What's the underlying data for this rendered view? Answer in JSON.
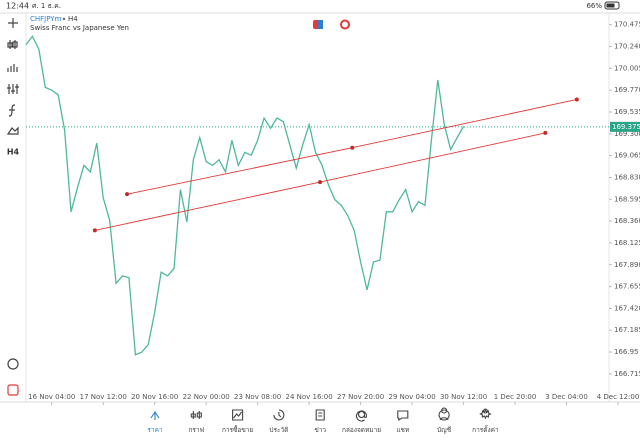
{
  "status_bar": {
    "time": "12:44",
    "date": "ศ. 1 ธ.ค.",
    "battery": "66%"
  },
  "toolbar": {
    "timeframe_button": "H4"
  },
  "chart_data": {
    "type": "line",
    "symbol": "CHFJPYm",
    "timeframe": "H4",
    "title": "Swiss Franc vs Japanese Yen",
    "x": [
      0,
      1,
      2,
      3,
      4,
      5,
      6,
      7,
      8,
      9,
      10,
      11,
      12,
      13,
      14,
      15,
      16,
      17,
      18,
      19,
      20,
      21,
      22,
      23,
      24,
      25,
      26,
      27,
      28,
      29,
      30,
      31,
      32,
      33,
      34,
      35,
      36,
      37,
      38,
      39,
      40,
      41,
      42,
      43,
      44,
      45,
      46,
      47,
      48,
      49,
      50,
      51,
      52,
      53,
      54,
      55,
      56,
      57,
      58,
      59,
      60,
      61,
      62,
      63,
      64,
      65,
      66,
      67,
      68
    ],
    "series": [
      {
        "color": "#4fb89a",
        "values": [
          170.26,
          170.35,
          170.21,
          169.8,
          169.77,
          169.72,
          169.34,
          168.46,
          168.72,
          168.96,
          168.89,
          169.2,
          168.61,
          168.37,
          167.69,
          167.77,
          167.75,
          166.92,
          166.95,
          167.03,
          167.38,
          167.81,
          167.77,
          167.85,
          168.7,
          168.35,
          169.02,
          169.26,
          169.0,
          168.96,
          169.02,
          168.89,
          169.23,
          168.96,
          169.1,
          169.07,
          169.23,
          169.47,
          169.36,
          169.47,
          169.43,
          169.18,
          168.93,
          169.18,
          169.4,
          169.1,
          168.96,
          168.75,
          168.59,
          168.53,
          168.42,
          168.26,
          167.92,
          167.62,
          167.92,
          167.94,
          168.46,
          168.46,
          168.59,
          168.7,
          168.46,
          168.57,
          168.53,
          169.23,
          169.88,
          169.4,
          169.13,
          169.26,
          169.38
        ]
      }
    ],
    "trendlines": [
      {
        "color": "#e53935",
        "x": [
          15.7,
          50.7,
          85.6
        ],
        "values": [
          168.65,
          169.15,
          169.67
        ]
      },
      {
        "color": "#e53935",
        "x": [
          10.7,
          45.7,
          80.7
        ],
        "values": [
          168.26,
          168.78,
          169.31
        ]
      }
    ],
    "current_price": 169.375,
    "current_price_color": "#2aa58a",
    "xlim": [
      0,
      92
    ],
    "xticks": [
      {
        "value": 4,
        "label": "16 Nov 04:00"
      },
      {
        "value": 12,
        "label": "17 Nov 12:00"
      },
      {
        "value": 20,
        "label": "20 Nov 16:00"
      },
      {
        "value": 28,
        "label": "22 Nov 00:00"
      },
      {
        "value": 36,
        "label": "23 Nov 08:00"
      },
      {
        "value": 44,
        "label": "24 Nov 16:00"
      },
      {
        "value": 52,
        "label": "27 Nov 20:00"
      },
      {
        "value": 60,
        "label": "29 Nov 04:00"
      },
      {
        "value": 68,
        "label": "30 Nov 12:00"
      },
      {
        "value": 76,
        "label": "1 Dec 20:00"
      },
      {
        "value": 84,
        "label": "3 Dec 04:00"
      },
      {
        "value": 92,
        "label": "4 Dec 12:00"
      }
    ],
    "ylim": [
      166.52,
      170.59
    ],
    "yticks": [
      170.475,
      {
        "value": 170.24,
        "label": "170.240"
      },
      170.005,
      {
        "value": 169.77,
        "label": "169.770"
      },
      169.535,
      {
        "value": 169.3,
        "label": "169.300"
      },
      169.065,
      {
        "value": 168.83,
        "label": "168.830"
      },
      168.595,
      {
        "value": 168.36,
        "label": "168.360"
      },
      168.125,
      {
        "value": 167.89,
        "label": "167.890"
      },
      167.655,
      {
        "value": 167.42,
        "label": "167.420"
      },
      167.185,
      166.95,
      166.715
    ]
  },
  "nav": [
    "ราคา",
    "กราฟ",
    "การซื้อขาย",
    "ประวัติ",
    "ข่าว",
    "กล่องจดหมาย",
    "แชท",
    "บัญชี",
    "การตั้งค่า"
  ]
}
